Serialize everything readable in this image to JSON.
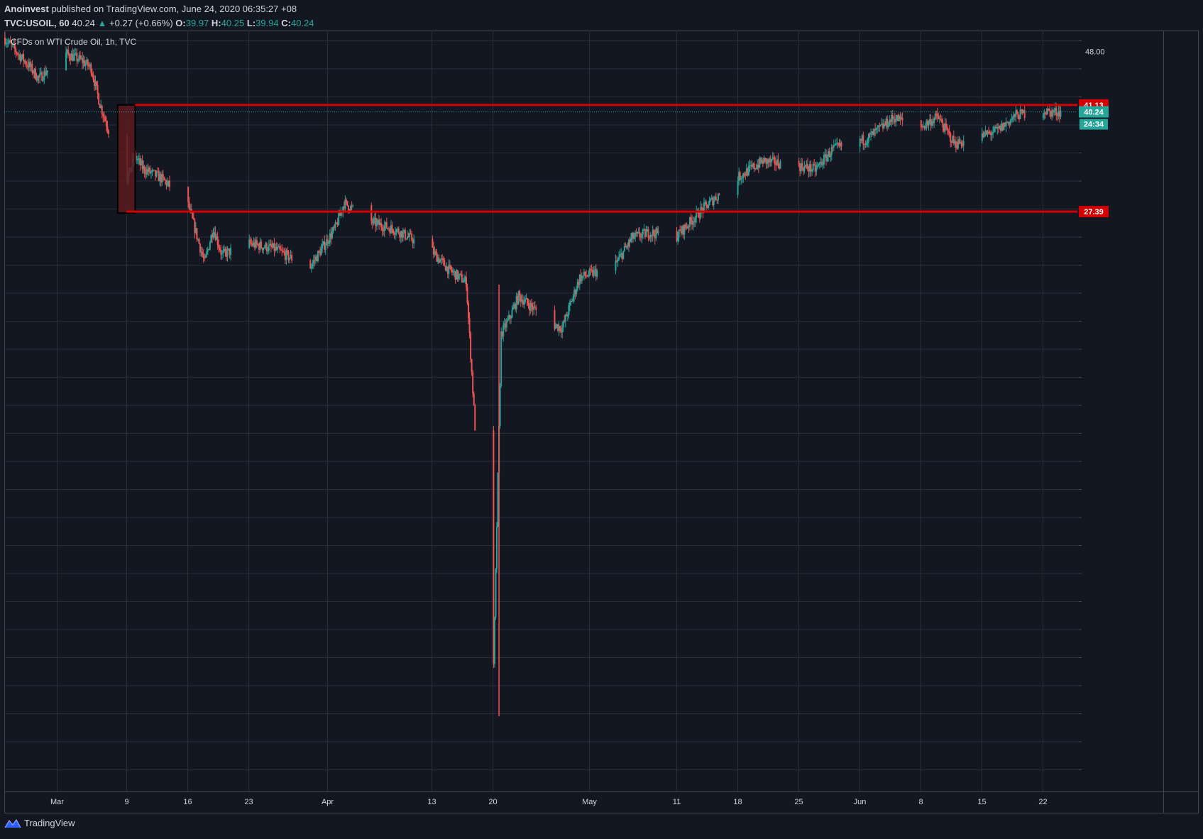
{
  "header": {
    "publisher": "Anoinvest",
    "published_text": " published on TradingView.com, June 24, 2020 06:35:27 +08",
    "symbol": "TVC:USOIL, 60",
    "last": "40.24",
    "change_arrow": "▲",
    "change": "+0.27 (+0.66%)",
    "o_label": "O:",
    "o_value": "39.97",
    "h_label": "H:",
    "h_value": "40.25",
    "l_label": "L:",
    "l_value": "39.94",
    "c_label": "C:",
    "c_value": "40.24"
  },
  "footer": {
    "brand": "TradingView",
    "logo_icon": "tradingview-logo-icon"
  },
  "colors": {
    "background": "#131722",
    "grid": "#2a2e39",
    "up": "#26a69a",
    "down": "#ef5350",
    "level_line": "#d50000",
    "box_fill": "#5c1a1f",
    "price_tag": "#26a69a",
    "text": "#d1d4dc"
  },
  "chart_data": {
    "type": "candlestick",
    "title": "CFDs on WTI Crude Oil, 1h, TVC",
    "ylim": [
      -37.6,
      49.8
    ],
    "y_ticks": [
      "48.00"
    ],
    "x_ticks": [
      "Mar",
      "9",
      "16",
      "23",
      "Apr",
      "13",
      "20",
      "May",
      "11",
      "18",
      "25",
      "Jun",
      "8",
      "15",
      "22"
    ],
    "x_tick_dates": [
      "2020-03-01",
      "2020-03-09",
      "2020-03-16",
      "2020-03-23",
      "2020-04-01",
      "2020-04-13",
      "2020-04-20",
      "2020-05-01",
      "2020-05-11",
      "2020-05-18",
      "2020-05-25",
      "2020-06-01",
      "2020-06-08",
      "2020-06-15",
      "2020-06-22"
    ],
    "x_range": [
      "2020-02-24",
      "2020-06-26"
    ],
    "grid": true,
    "price_path": [
      {
        "t": "2020-02-24",
        "p": 49.8
      },
      {
        "t": "2020-02-27",
        "p": 46.0
      },
      {
        "t": "2020-02-28",
        "p": 44.5
      },
      {
        "t": "2020-03-02",
        "p": 47.8
      },
      {
        "t": "2020-03-04",
        "p": 46.8
      },
      {
        "t": "2020-03-05",
        "p": 45.9
      },
      {
        "t": "2020-03-06",
        "p": 41.3
      },
      {
        "t": "2020-03-09",
        "p": 31.1
      },
      {
        "t": "2020-03-10",
        "p": 34.5
      },
      {
        "t": "2020-03-11",
        "p": 32.9
      },
      {
        "t": "2020-03-13",
        "p": 31.7
      },
      {
        "t": "2020-03-16",
        "p": 28.7
      },
      {
        "t": "2020-03-18",
        "p": 20.8
      },
      {
        "t": "2020-03-19",
        "p": 25.3
      },
      {
        "t": "2020-03-20",
        "p": 21.8
      },
      {
        "t": "2020-03-23",
        "p": 23.3
      },
      {
        "t": "2020-03-26",
        "p": 22.6
      },
      {
        "t": "2020-03-30",
        "p": 20.1
      },
      {
        "t": "2020-04-02",
        "p": 25.3
      },
      {
        "t": "2020-04-03",
        "p": 28.5
      },
      {
        "t": "2020-04-06",
        "p": 26.1
      },
      {
        "t": "2020-04-09",
        "p": 25.0
      },
      {
        "t": "2020-04-13",
        "p": 22.4
      },
      {
        "t": "2020-04-15",
        "p": 19.9
      },
      {
        "t": "2020-04-17",
        "p": 18.3
      },
      {
        "t": "2020-04-20",
        "p": -37.6
      },
      {
        "t": "2020-04-21",
        "p": 11.6
      },
      {
        "t": "2020-04-22",
        "p": 13.8
      },
      {
        "t": "2020-04-23",
        "p": 16.5
      },
      {
        "t": "2020-04-27",
        "p": 12.8
      },
      {
        "t": "2020-04-28",
        "p": 12.4
      },
      {
        "t": "2020-04-30",
        "p": 18.9
      },
      {
        "t": "2020-05-04",
        "p": 20.4
      },
      {
        "t": "2020-05-06",
        "p": 24.0
      },
      {
        "t": "2020-05-08",
        "p": 24.7
      },
      {
        "t": "2020-05-11",
        "p": 24.1
      },
      {
        "t": "2020-05-14",
        "p": 27.6
      },
      {
        "t": "2020-05-18",
        "p": 31.7
      },
      {
        "t": "2020-05-21",
        "p": 33.9
      },
      {
        "t": "2020-05-25",
        "p": 33.3
      },
      {
        "t": "2020-05-27",
        "p": 32.8
      },
      {
        "t": "2020-05-29",
        "p": 35.4
      },
      {
        "t": "2020-06-02",
        "p": 36.8
      },
      {
        "t": "2020-06-05",
        "p": 39.5
      },
      {
        "t": "2020-06-08",
        "p": 38.2
      },
      {
        "t": "2020-06-10",
        "p": 39.6
      },
      {
        "t": "2020-06-12",
        "p": 36.1
      },
      {
        "t": "2020-06-15",
        "p": 37.1
      },
      {
        "t": "2020-06-17",
        "p": 37.9
      },
      {
        "t": "2020-06-19",
        "p": 39.8
      },
      {
        "t": "2020-06-22",
        "p": 40.5
      },
      {
        "t": "2020-06-23",
        "p": 40.2
      },
      {
        "t": "2020-06-24",
        "p": 40.24
      }
    ],
    "horizontal_levels": [
      {
        "value": 41.13,
        "label": "41.13",
        "from": "2020-03-10"
      },
      {
        "value": 27.39,
        "label": "27.39",
        "from": "2020-03-09"
      }
    ],
    "box": {
      "from": "2020-03-08",
      "to": "2020-03-10",
      "top": 41.13,
      "bottom": 27.2
    },
    "last_price": {
      "value": 40.24,
      "label": "40.24",
      "countdown": "24:34"
    }
  }
}
